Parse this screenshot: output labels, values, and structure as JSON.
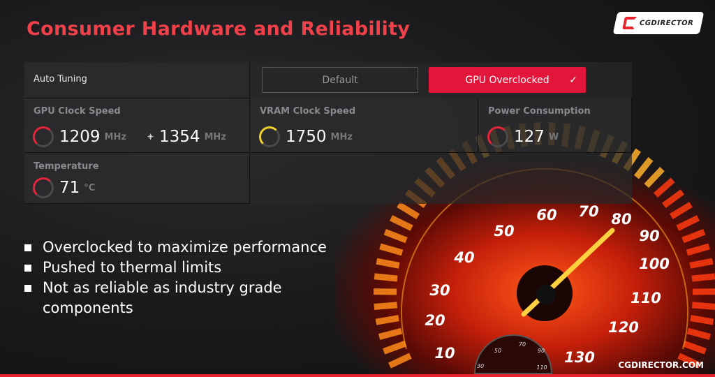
{
  "title": "Consumer Hardware and Reliability",
  "logo": "CGDIRECTOR",
  "panel": {
    "auto_tuning": "Auto Tuning",
    "default_label": "Default",
    "overclocked_label": "GPU Overclocked",
    "check": "✓",
    "gpu_clock": {
      "label": "GPU Clock Speed",
      "value": "1209",
      "unit": "MHz",
      "boost_icon": "crosshair-icon",
      "boost_value": "1354",
      "boost_unit": "MHz",
      "color": "#e8243a"
    },
    "vram_clock": {
      "label": "VRAM Clock Speed",
      "value": "1750",
      "unit": "MHz",
      "color": "#f2d22a"
    },
    "power": {
      "label": "Power Consumption",
      "value": "127",
      "unit": "W",
      "color": "#e8243a"
    },
    "temperature": {
      "label": "Temperature",
      "value": "71",
      "unit": "°C",
      "color": "#e8243a"
    }
  },
  "bullets": [
    "Overclocked to maximize performance",
    "Pushed to thermal limits",
    "Not as reliable as industry grade components"
  ],
  "speedometer": {
    "labels": [
      "10",
      "20",
      "30",
      "40",
      "50",
      "60",
      "70",
      "80",
      "90",
      "100",
      "110",
      "120",
      "130"
    ],
    "small_labels": [
      "30",
      "50",
      "70",
      "90",
      "110"
    ]
  },
  "footer": "CGDIRECTOR.COM"
}
